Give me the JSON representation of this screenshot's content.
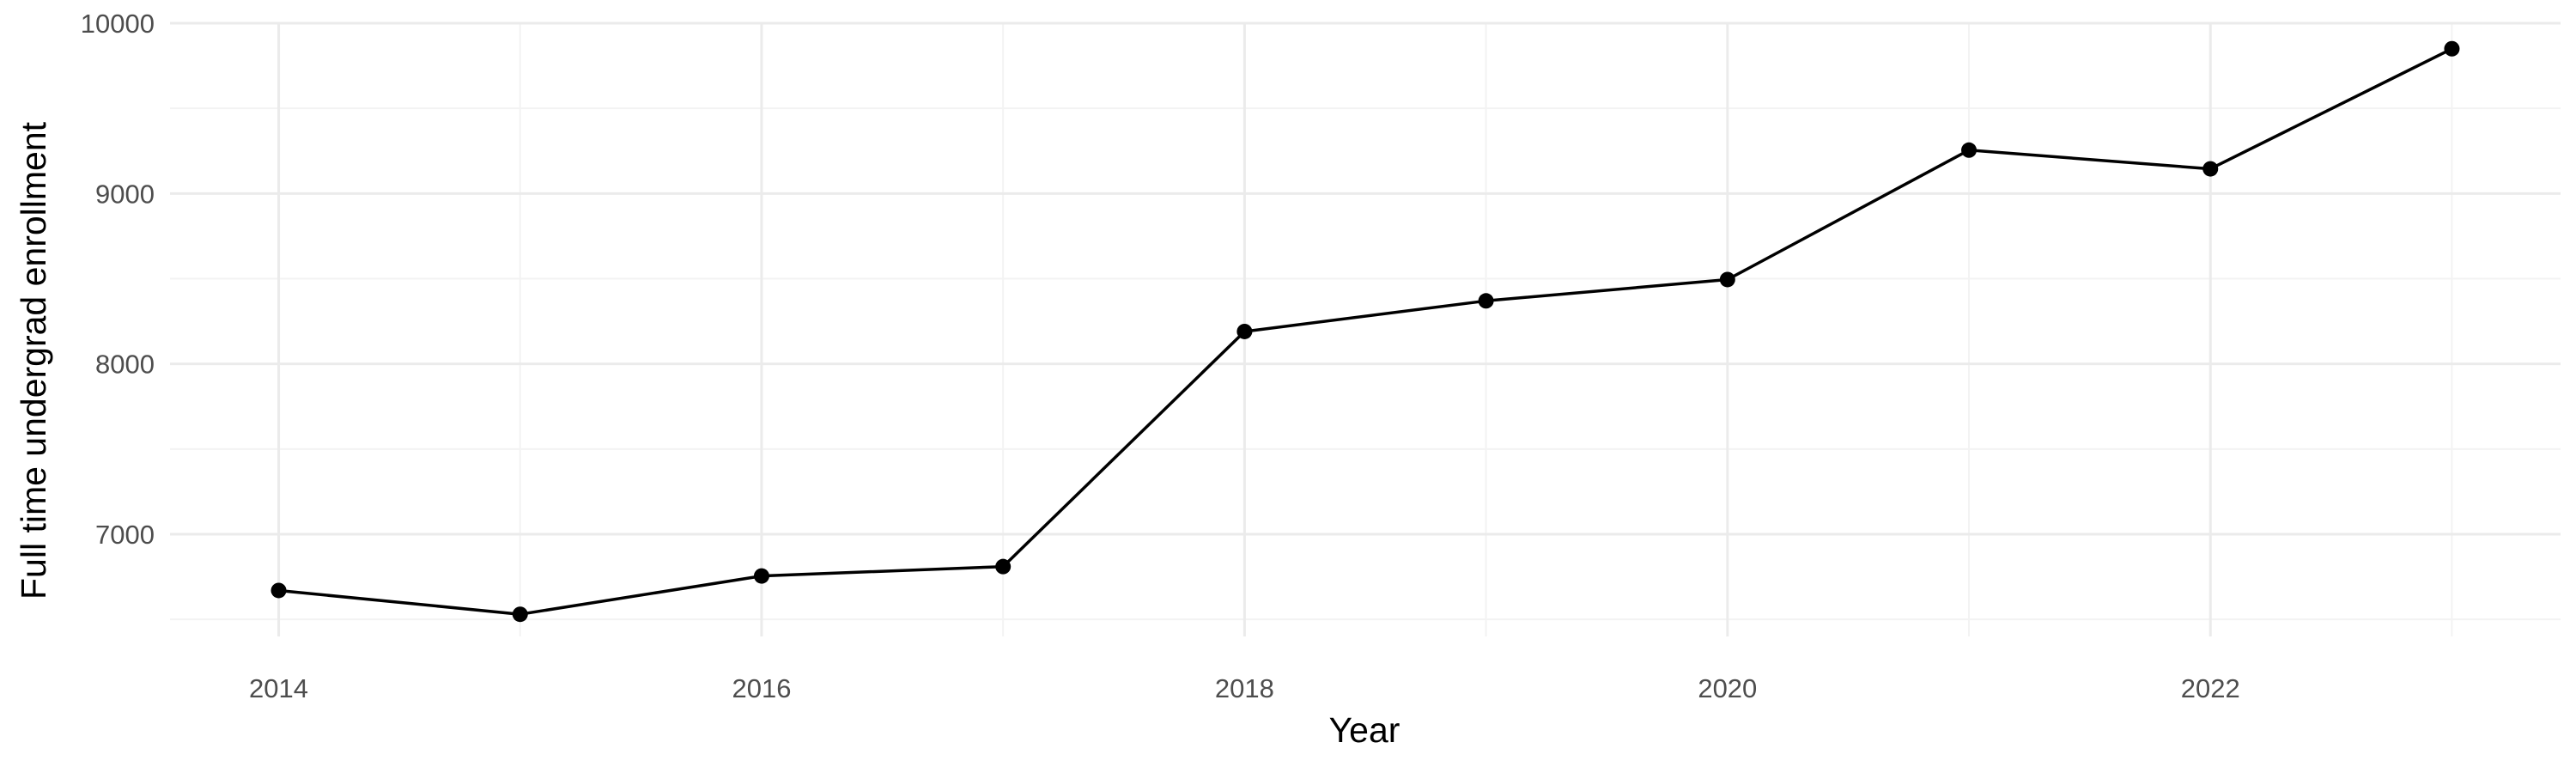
{
  "chart_data": {
    "type": "line",
    "xlabel": "Year",
    "ylabel": "Full time undergrad enrollment",
    "x": [
      2014,
      2015,
      2016,
      2017,
      2018,
      2019,
      2020,
      2021,
      2022,
      2023
    ],
    "series": [
      {
        "values": [
          6670,
          6530,
          6755,
          6810,
          8190,
          8370,
          8495,
          9255,
          9145,
          9850
        ]
      }
    ],
    "xlim": [
      2013.55,
      2023.45
    ],
    "ylim": [
      6400,
      10000
    ],
    "x_ticks": [
      2014,
      2016,
      2018,
      2020,
      2022
    ],
    "x_tick_labels": [
      "2014",
      "2016",
      "2018",
      "2020",
      "2022"
    ],
    "y_ticks": [
      7000,
      8000,
      9000,
      10000
    ],
    "y_tick_labels": [
      "7000",
      "8000",
      "9000",
      "10000"
    ],
    "grid": true,
    "line_color": "#000000",
    "point_color": "#000000"
  }
}
